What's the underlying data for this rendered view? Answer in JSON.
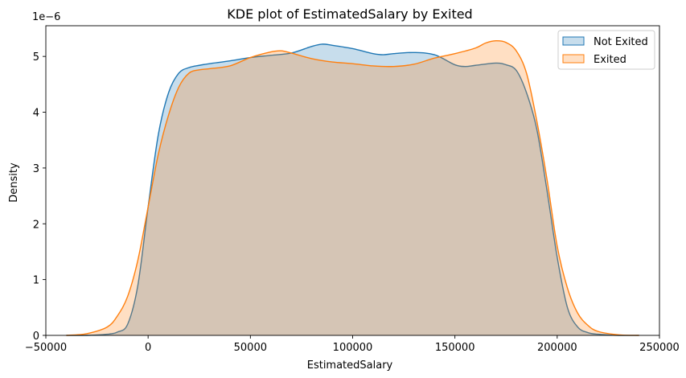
{
  "chart_data": {
    "type": "area",
    "title": "KDE plot of EstimatedSalary by Exited",
    "xlabel": "EstimatedSalary",
    "ylabel": "Density",
    "y_offset_label": "1e−6",
    "xlim": [
      -50000,
      250000
    ],
    "ylim": [
      0,
      5.55
    ],
    "xticks": [
      -50000,
      0,
      50000,
      100000,
      150000,
      200000,
      250000
    ],
    "xtick_labels": [
      "−50000",
      "0",
      "50000",
      "100000",
      "150000",
      "200000",
      "250000"
    ],
    "yticks": [
      0,
      1,
      2,
      3,
      4,
      5
    ],
    "ytick_labels": [
      "0",
      "1",
      "2",
      "3",
      "4",
      "5"
    ],
    "y_unit": "1e-6",
    "grid": false,
    "legend_position": "top-right",
    "series": [
      {
        "name": "Not Exited",
        "color": "#1f77b4",
        "x": [
          -40000,
          -30000,
          -20000,
          -15000,
          -10000,
          -5000,
          0,
          5000,
          10000,
          15000,
          20000,
          25000,
          30000,
          40000,
          50000,
          60000,
          70000,
          80000,
          85000,
          90000,
          100000,
          110000,
          115000,
          120000,
          130000,
          140000,
          150000,
          155000,
          160000,
          170000,
          175000,
          180000,
          185000,
          190000,
          195000,
          200000,
          205000,
          210000,
          215000,
          220000,
          230000,
          240000
        ],
        "y": [
          0.0,
          0.0,
          0.02,
          0.06,
          0.2,
          0.9,
          2.3,
          3.6,
          4.35,
          4.7,
          4.8,
          4.84,
          4.87,
          4.92,
          4.98,
          5.02,
          5.06,
          5.18,
          5.22,
          5.2,
          5.14,
          5.05,
          5.03,
          5.05,
          5.07,
          5.03,
          4.85,
          4.82,
          4.84,
          4.88,
          4.85,
          4.75,
          4.35,
          3.7,
          2.6,
          1.4,
          0.5,
          0.15,
          0.05,
          0.02,
          0.0,
          0.0
        ]
      },
      {
        "name": "Exited",
        "color": "#ff7f0e",
        "x": [
          -40000,
          -30000,
          -20000,
          -15000,
          -10000,
          -5000,
          0,
          5000,
          10000,
          15000,
          20000,
          25000,
          30000,
          40000,
          50000,
          60000,
          65000,
          70000,
          80000,
          90000,
          100000,
          110000,
          120000,
          130000,
          140000,
          150000,
          160000,
          165000,
          170000,
          175000,
          180000,
          185000,
          190000,
          195000,
          200000,
          205000,
          210000,
          215000,
          220000,
          230000,
          240000
        ],
        "y": [
          0.0,
          0.03,
          0.15,
          0.35,
          0.7,
          1.35,
          2.3,
          3.25,
          3.95,
          4.45,
          4.7,
          4.76,
          4.78,
          4.83,
          4.98,
          5.08,
          5.1,
          5.06,
          4.96,
          4.9,
          4.87,
          4.83,
          4.82,
          4.86,
          4.97,
          5.05,
          5.15,
          5.24,
          5.28,
          5.25,
          5.1,
          4.7,
          3.85,
          2.8,
          1.6,
          0.85,
          0.4,
          0.18,
          0.07,
          0.01,
          0.0
        ]
      }
    ]
  }
}
